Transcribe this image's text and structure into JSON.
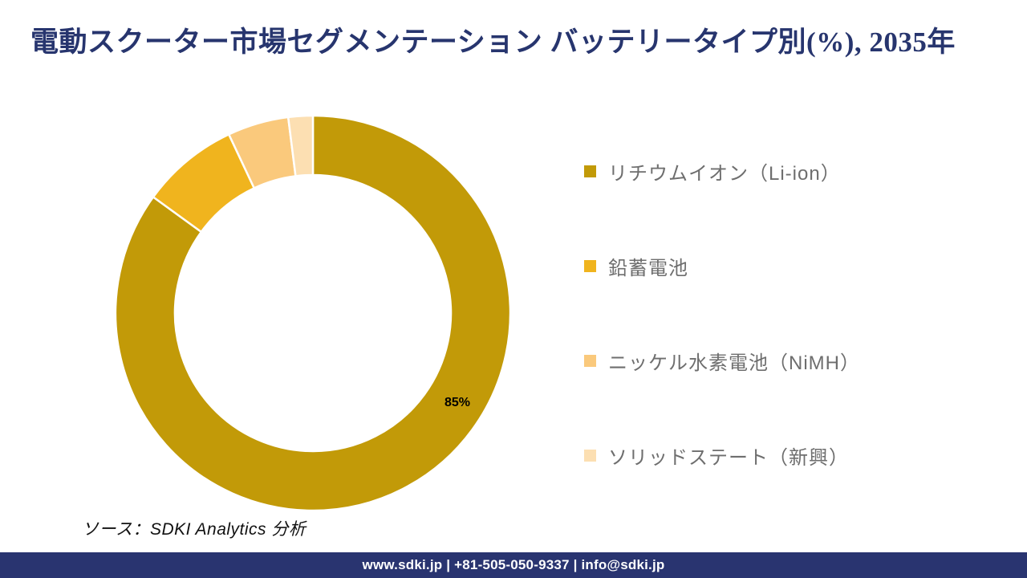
{
  "title": "電動スクーター市場セグメンテーション バッテリータイプ別(%), 2035年",
  "source": "ソース：SDKI Analytics 分析",
  "footer": {
    "text": "www.sdki.jp | +81-505-050-9337 | info@sdki.jp",
    "bg_color": "#293470"
  },
  "colors": {
    "title": "#27356e",
    "legend_text": "#6e6e6e",
    "data_label": "#000000",
    "slice_divider": "#ffffff"
  },
  "chart_data": {
    "type": "pie",
    "subtype": "donut",
    "title": "電動スクーター市場セグメンテーション バッテリータイプ別(%), 2035年",
    "start_angle_deg": 0,
    "direction": "clockwise",
    "inner_radius_ratio": 0.7,
    "legend_position": "right",
    "slices": [
      {
        "label": "リチウムイオン（Li-ion）",
        "value": 85,
        "color": "#C29A08",
        "data_label": "85%"
      },
      {
        "label": "鉛蓄電池",
        "value": 8,
        "color": "#F0B41E",
        "data_label": ""
      },
      {
        "label": "ニッケル水素電池（NiMH）",
        "value": 5,
        "color": "#FAC97C",
        "data_label": ""
      },
      {
        "label": "ソリッドステート（新興）",
        "value": 2,
        "color": "#FCDFB2",
        "data_label": ""
      }
    ]
  }
}
